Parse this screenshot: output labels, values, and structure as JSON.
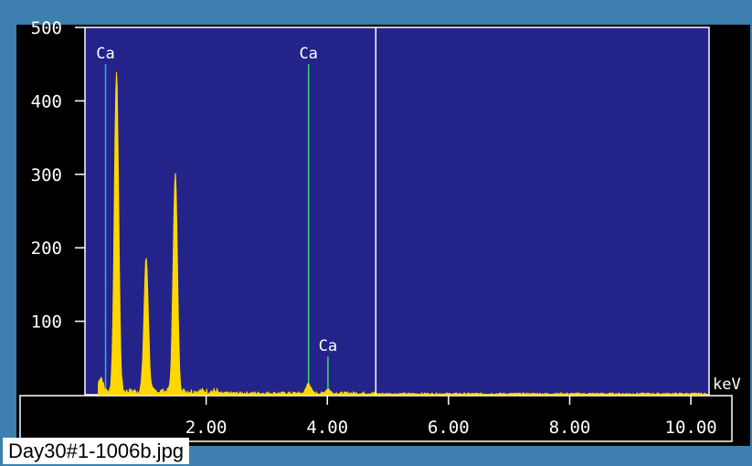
{
  "caption": "Day30#1-1006b.jpg",
  "colors": {
    "frame": "#3d7fae",
    "plot_bg": "#23238a",
    "outer_bg": "#000000",
    "spectrum": "#ffd700",
    "marker_blue": "#33aaff",
    "marker_green": "#33dd66",
    "axis_text": "#ffffff"
  },
  "chart_data": {
    "type": "line",
    "xlabel": "keV",
    "xlim": [
      0,
      10.3
    ],
    "ylim": [
      0,
      500
    ],
    "x_ticks": [
      2,
      4,
      6,
      8,
      10
    ],
    "x_tick_labels": [
      "2.00",
      "4.00",
      "6.00",
      "8.00",
      "10.00"
    ],
    "y_ticks": [
      100,
      200,
      300,
      400,
      500
    ],
    "y_tick_labels": [
      "100",
      "200",
      "300",
      "400",
      "500"
    ],
    "cursor_keV": 4.8,
    "element_markers": [
      {
        "label": "Ca",
        "energy_keV": 0.34,
        "height": 450,
        "color": "blue"
      },
      {
        "label": "Ca",
        "energy_keV": 3.69,
        "height": 450,
        "color": "green"
      },
      {
        "label": "Ca",
        "energy_keV": 4.01,
        "height": 52,
        "color": "green"
      }
    ],
    "peaks": [
      {
        "energy_keV": 0.26,
        "counts": 20
      },
      {
        "energy_keV": 0.52,
        "counts": 435
      },
      {
        "energy_keV": 1.01,
        "counts": 182
      },
      {
        "energy_keV": 1.49,
        "counts": 296
      },
      {
        "energy_keV": 3.69,
        "counts": 14
      },
      {
        "energy_keV": 4.01,
        "counts": 6
      }
    ]
  }
}
